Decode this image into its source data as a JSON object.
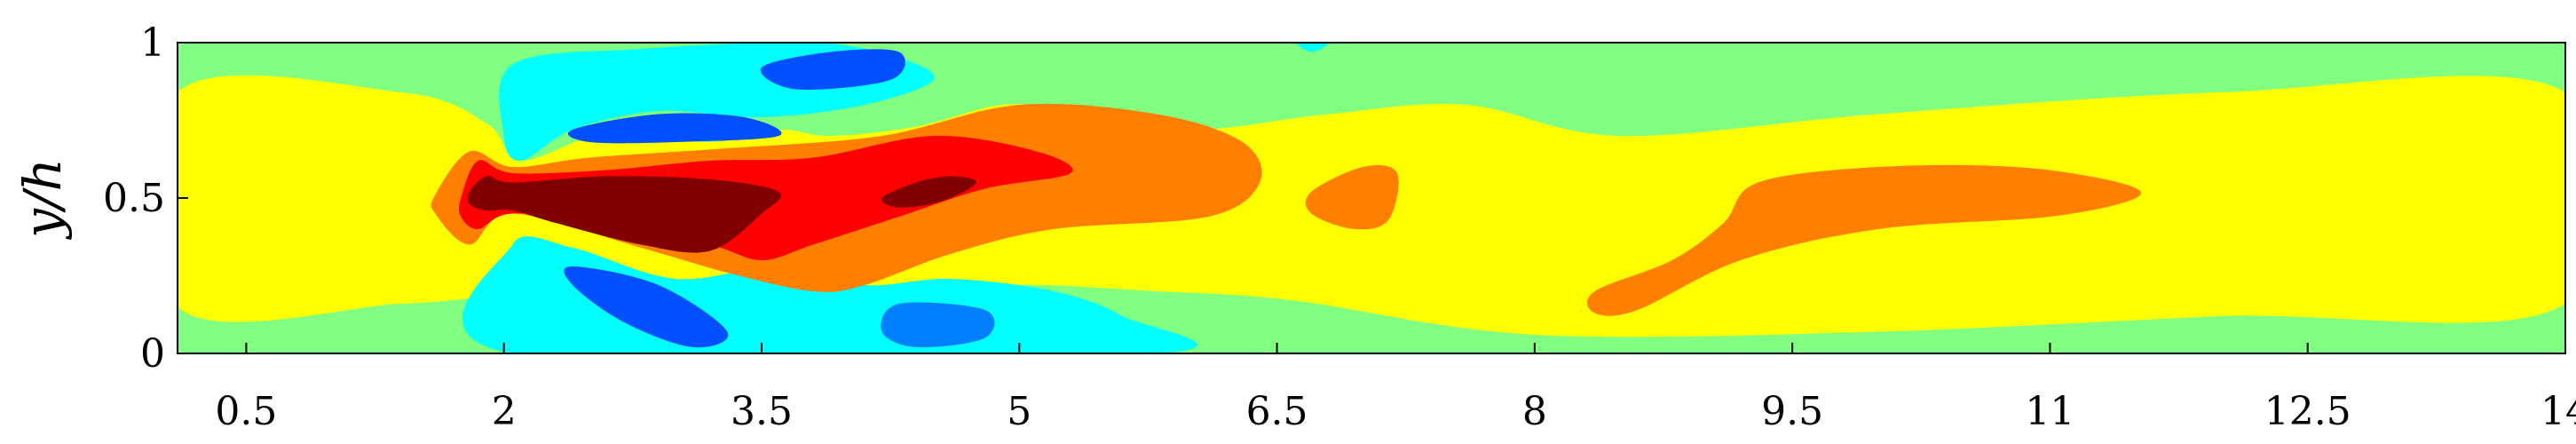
{
  "chart_data": {
    "type": "heatmap",
    "title": "",
    "xlabel": "",
    "ylabel": "y/h",
    "xlim": [
      0.1,
      14
    ],
    "ylim": [
      0,
      1
    ],
    "x_ticks": [
      0.5,
      2,
      3.5,
      5,
      6.5,
      8,
      9.5,
      11,
      12.5,
      14
    ],
    "y_ticks": [
      0,
      0.5,
      1
    ],
    "x_tick_labels": [
      "0.5",
      "2",
      "3.5",
      "5",
      "6.5",
      "8",
      "9.5",
      "11",
      "12.5",
      "14"
    ],
    "y_tick_labels": [
      "0",
      "0.5",
      "1"
    ],
    "grid": false,
    "legend": "none",
    "colors": {
      "level_1": "#0050ff",
      "level_2": "#0080ff",
      "level_3": "#00ffff",
      "level_4": "#80ff80",
      "level_5": "#ffff00",
      "level_6": "#ff8000",
      "level_7": "#ff0000",
      "level_8": "#800000"
    },
    "regions": [
      {
        "level": "level_5",
        "points": [
          [
            0.1,
            0.15
          ],
          [
            1.4,
            0.16
          ],
          [
            1.9,
            0.18
          ],
          [
            2.05,
            0.15
          ],
          [
            3.5,
            0.16
          ],
          [
            4.8,
            0.22
          ],
          [
            5.8,
            0.2
          ],
          [
            6.6,
            0.17
          ],
          [
            8,
            0.06
          ],
          [
            10,
            0.07
          ],
          [
            12,
            0.12
          ],
          [
            14,
            0.16
          ],
          [
            14,
            0.84
          ],
          [
            12,
            0.84
          ],
          [
            10,
            0.77
          ],
          [
            8.5,
            0.7
          ],
          [
            7.6,
            0.8
          ],
          [
            6.8,
            0.77
          ],
          [
            6,
            0.72
          ],
          [
            5.3,
            0.78
          ],
          [
            4.9,
            0.8
          ],
          [
            4.4,
            0.73
          ],
          [
            3.9,
            0.7
          ],
          [
            3.6,
            0.72
          ],
          [
            3.2,
            0.68
          ],
          [
            2.6,
            0.71
          ],
          [
            2.1,
            0.62
          ],
          [
            1.9,
            0.74
          ],
          [
            1.4,
            0.84
          ],
          [
            0.1,
            0.84
          ]
        ]
      },
      {
        "level": "level_3",
        "points": [
          [
            2.05,
            0.93
          ],
          [
            2.8,
            0.98
          ],
          [
            3.8,
            1
          ],
          [
            4.3,
            0.95
          ],
          [
            4.5,
            0.88
          ],
          [
            4.1,
            0.8
          ],
          [
            3.5,
            0.76
          ],
          [
            2.9,
            0.78
          ],
          [
            2.4,
            0.72
          ],
          [
            2.1,
            0.62
          ],
          [
            2,
            0.7
          ]
        ]
      },
      {
        "level": "level_3",
        "points": [
          [
            2.05,
            0.35
          ],
          [
            2.4,
            0.34
          ],
          [
            3,
            0.24
          ],
          [
            3.6,
            0.28
          ],
          [
            4.1,
            0.22
          ],
          [
            4.6,
            0.24
          ],
          [
            5.2,
            0.2
          ],
          [
            5.6,
            0.12
          ],
          [
            5.8,
            0.0
          ],
          [
            2.05,
            0.0
          ]
        ]
      },
      {
        "level": "level_3",
        "points": [
          [
            6.62,
            1
          ],
          [
            6.7,
            0.97
          ],
          [
            6.8,
            1
          ]
        ]
      },
      {
        "level": "level_1",
        "points": [
          [
            3.5,
            0.92
          ],
          [
            3.9,
            0.97
          ],
          [
            4.3,
            0.97
          ],
          [
            4.25,
            0.88
          ],
          [
            3.7,
            0.85
          ]
        ]
      },
      {
        "level": "level_1",
        "points": [
          [
            2.4,
            0.72
          ],
          [
            2.9,
            0.77
          ],
          [
            3.4,
            0.76
          ],
          [
            3.6,
            0.7
          ],
          [
            3,
            0.68
          ],
          [
            2.5,
            0.68
          ]
        ]
      },
      {
        "level": "level_1",
        "points": [
          [
            2.4,
            0.28
          ],
          [
            2.9,
            0.22
          ],
          [
            3.3,
            0.07
          ],
          [
            3.1,
            0.02
          ],
          [
            2.7,
            0.1
          ],
          [
            2.4,
            0.22
          ]
        ]
      },
      {
        "level": "level_2",
        "points": [
          [
            4.3,
            0.16
          ],
          [
            4.8,
            0.14
          ],
          [
            4.8,
            0.05
          ],
          [
            4.4,
            0.02
          ],
          [
            4.2,
            0.07
          ]
        ]
      },
      {
        "level": "level_6",
        "points": [
          [
            1.6,
            0.51
          ],
          [
            1.8,
            0.65
          ],
          [
            2.05,
            0.6
          ],
          [
            2.5,
            0.63
          ],
          [
            3.3,
            0.66
          ],
          [
            4.2,
            0.7
          ],
          [
            5,
            0.8
          ],
          [
            5.8,
            0.77
          ],
          [
            6.3,
            0.68
          ],
          [
            6.4,
            0.55
          ],
          [
            6.1,
            0.44
          ],
          [
            5.2,
            0.4
          ],
          [
            4.6,
            0.32
          ],
          [
            4.1,
            0.22
          ],
          [
            3.8,
            0.2
          ],
          [
            3.3,
            0.26
          ],
          [
            2.8,
            0.34
          ],
          [
            2.05,
            0.45
          ],
          [
            1.8,
            0.35
          ],
          [
            1.6,
            0.45
          ]
        ]
      },
      {
        "level": "level_6",
        "points": [
          [
            8.35,
            0.2
          ],
          [
            8.8,
            0.3
          ],
          [
            9.1,
            0.42
          ],
          [
            9.3,
            0.55
          ],
          [
            10,
            0.6
          ],
          [
            10.8,
            0.6
          ],
          [
            11.4,
            0.55
          ],
          [
            11.5,
            0.5
          ],
          [
            11,
            0.44
          ],
          [
            10,
            0.4
          ],
          [
            9.2,
            0.3
          ],
          [
            8.6,
            0.14
          ],
          [
            8.35,
            0.13
          ]
        ]
      },
      {
        "level": "level_6",
        "points": [
          [
            6.7,
            0.52
          ],
          [
            7.0,
            0.6
          ],
          [
            7.2,
            0.58
          ],
          [
            7.15,
            0.43
          ],
          [
            6.95,
            0.4
          ],
          [
            6.7,
            0.45
          ]
        ]
      },
      {
        "level": "level_7",
        "points": [
          [
            1.75,
            0.5
          ],
          [
            1.85,
            0.62
          ],
          [
            2.05,
            0.58
          ],
          [
            2.6,
            0.59
          ],
          [
            3.2,
            0.62
          ],
          [
            3.8,
            0.63
          ],
          [
            4.5,
            0.7
          ],
          [
            5.1,
            0.65
          ],
          [
            5.3,
            0.58
          ],
          [
            4.8,
            0.53
          ],
          [
            4.3,
            0.44
          ],
          [
            3.8,
            0.35
          ],
          [
            3.5,
            0.3
          ],
          [
            3.2,
            0.35
          ],
          [
            2.6,
            0.42
          ],
          [
            2.05,
            0.45
          ],
          [
            1.85,
            0.4
          ],
          [
            1.75,
            0.44
          ]
        ]
      },
      {
        "level": "level_8",
        "points": [
          [
            1.8,
            0.52
          ],
          [
            1.9,
            0.57
          ],
          [
            2.05,
            0.55
          ],
          [
            2.6,
            0.57
          ],
          [
            3.2,
            0.56
          ],
          [
            3.6,
            0.52
          ],
          [
            3.5,
            0.45
          ],
          [
            3.2,
            0.33
          ],
          [
            2.8,
            0.35
          ],
          [
            2.3,
            0.42
          ],
          [
            2.05,
            0.46
          ],
          [
            1.9,
            0.46
          ],
          [
            1.8,
            0.48
          ]
        ]
      },
      {
        "level": "level_8",
        "points": [
          [
            4.2,
            0.5
          ],
          [
            4.4,
            0.55
          ],
          [
            4.6,
            0.57
          ],
          [
            4.75,
            0.55
          ],
          [
            4.55,
            0.49
          ],
          [
            4.3,
            0.47
          ]
        ]
      }
    ]
  }
}
